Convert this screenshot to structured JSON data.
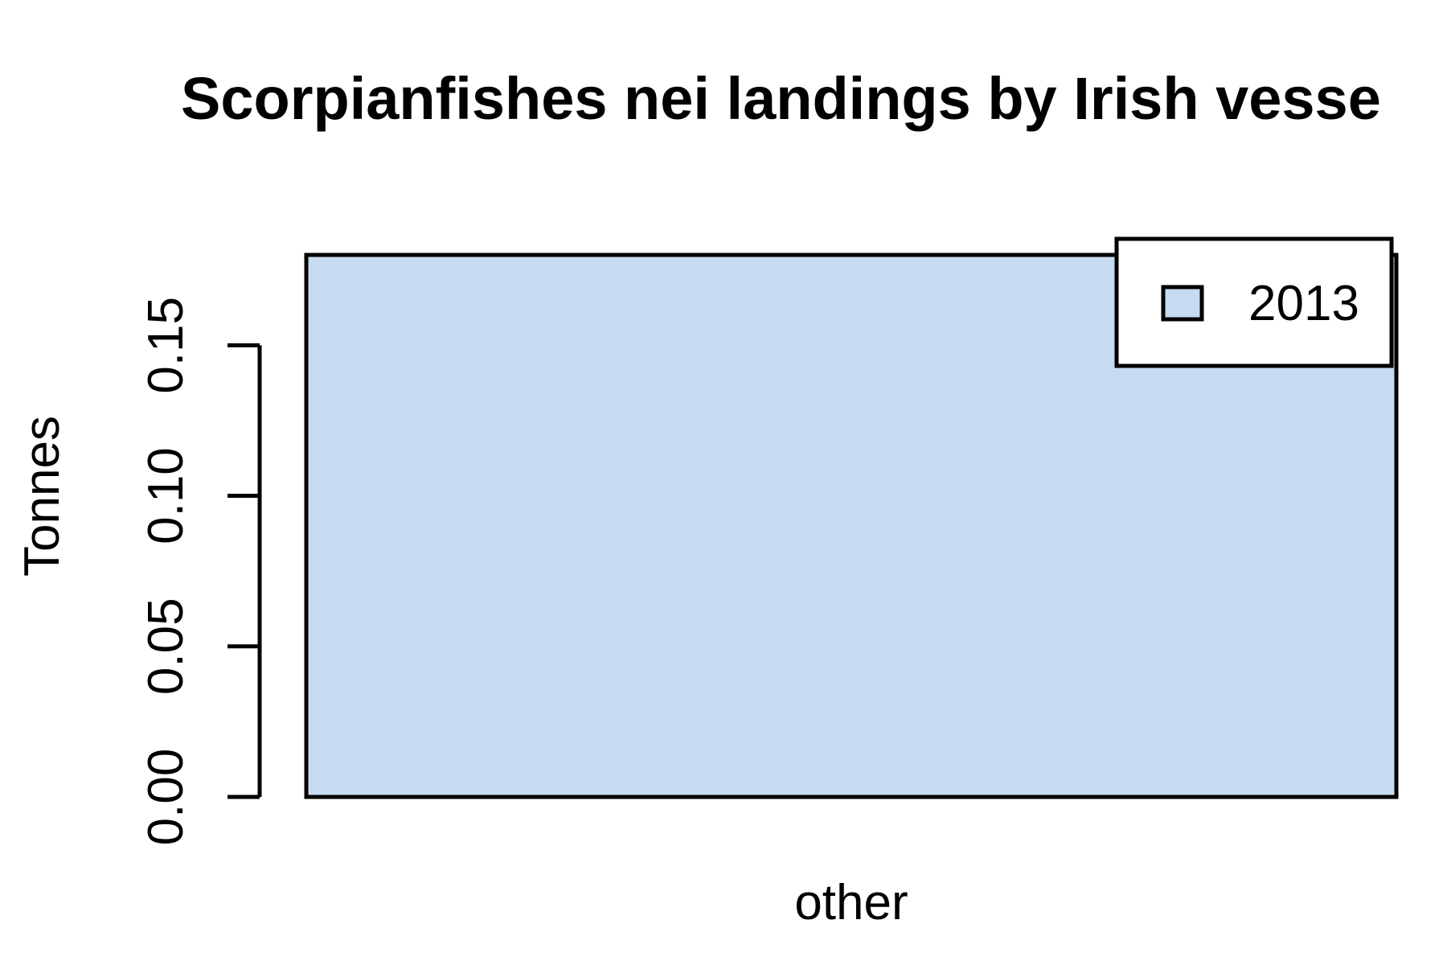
{
  "chart_data": {
    "type": "bar",
    "title": "Scorpianfishes nei landings by Irish vesse",
    "xlabel": "",
    "ylabel": "Tonnes",
    "categories": [
      "other"
    ],
    "series": [
      {
        "name": "2013",
        "values": [
          0.18
        ],
        "color": "#c6dbef"
      }
    ],
    "yticks": [
      0.0,
      0.05,
      0.1,
      0.15
    ],
    "ytick_labels": [
      "0.00",
      "0.05",
      "0.10",
      "0.15"
    ],
    "ylim": [
      0,
      0.18
    ],
    "grid": false,
    "legend": {
      "position": "top-right",
      "entries": [
        "2013"
      ]
    }
  }
}
